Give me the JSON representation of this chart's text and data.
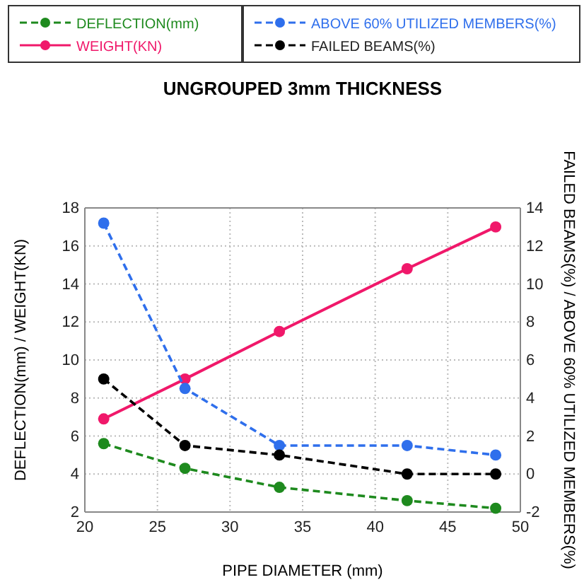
{
  "chart_data": {
    "type": "line",
    "title": "UNGROUPED 3mm THICKNESS",
    "xlabel": "PIPE DIAMETER (mm)",
    "ylabel": "DEFLECTION(mm) / WEIGHT(KN)",
    "y2label": "FAILED BEAMS(%) / ABOVE 60% UTILIZED MEMBERS(%)",
    "x": [
      21.3,
      26.9,
      33.4,
      42.2,
      48.3
    ],
    "xlim": [
      20,
      50
    ],
    "xticks": [
      20,
      25,
      30,
      35,
      40,
      45,
      50
    ],
    "ylim": [
      2,
      18
    ],
    "yticks": [
      2,
      4,
      6,
      8,
      10,
      12,
      14,
      16,
      18
    ],
    "y2lim": [
      -2,
      14
    ],
    "y2ticks": [
      -2,
      0,
      2,
      4,
      6,
      8,
      10,
      12,
      14
    ],
    "grid": true,
    "legend": "top",
    "marker": "circle",
    "series": [
      {
        "name": "DEFLECTION(mm)",
        "color": "#1e8a1e",
        "values": [
          5.6,
          4.3,
          3.3,
          2.6,
          2.2
        ],
        "line_style": "dashed"
      },
      {
        "name": "WEIGHT(KN)",
        "color": "#f0186a",
        "values": [
          6.9,
          9.0,
          11.5,
          14.8,
          17.0
        ],
        "line_style": "solid"
      },
      {
        "name": "ABOVE 60% UTILIZED MEMBERS(%)",
        "color": "#2f6fec",
        "values": [
          13.2,
          4.5,
          1.5,
          1.5,
          1.0
        ],
        "line_style": "dashed",
        "axis": "y2"
      },
      {
        "name": "FAILED BEAMS(%)",
        "color": "#000000",
        "values": [
          5.0,
          1.5,
          1.0,
          0,
          0
        ],
        "line_style": "dashed",
        "axis": "y2"
      }
    ]
  }
}
